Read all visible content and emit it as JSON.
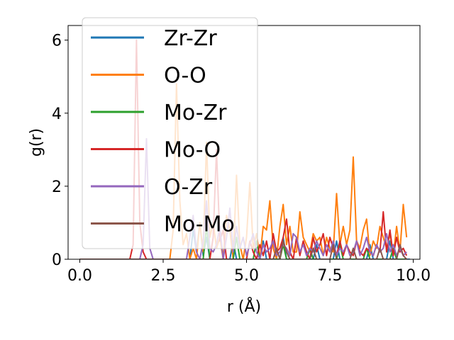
{
  "chart_data": {
    "type": "line",
    "xlabel": "r (Å)",
    "ylabel": "g(r)",
    "xlim": [
      -0.35,
      10.2
    ],
    "ylim": [
      0,
      6.4
    ],
    "xticks": [
      0.0,
      2.5,
      5.0,
      7.5,
      10.0
    ],
    "xtick_labels": [
      "0.0",
      "2.5",
      "5.0",
      "7.5",
      "10.0"
    ],
    "yticks": [
      0,
      2,
      4,
      6
    ],
    "ytick_labels": [
      "0",
      "2",
      "4",
      "6"
    ],
    "grid": false,
    "legend_position": "upper-left",
    "series": [
      {
        "name": "Zr-Zr",
        "color": "#1f77b4",
        "x": [
          0.0,
          3.3,
          3.4,
          3.5,
          3.6,
          3.7,
          3.8,
          3.9,
          4.5,
          4.6,
          4.7,
          5.4,
          5.5,
          5.6,
          6.0,
          6.1,
          6.2,
          7.0,
          7.1,
          7.2,
          7.6,
          7.7,
          7.8,
          8.6,
          8.7,
          8.8,
          9.2,
          9.3,
          9.4,
          9.9
        ],
        "y": [
          0,
          0,
          0.8,
          0.2,
          1.0,
          0.1,
          0.6,
          0,
          0,
          0.5,
          0,
          0,
          0.5,
          0,
          0,
          0.6,
          0,
          0,
          0.4,
          0,
          0,
          0.5,
          0,
          0,
          0.4,
          0,
          0,
          0.5,
          0,
          0
        ]
      },
      {
        "name": "O-O",
        "color": "#ff7f0e",
        "x": [
          0.0,
          2.7,
          2.8,
          2.9,
          3.0,
          3.1,
          3.2,
          3.3,
          3.4,
          3.5,
          3.6,
          3.7,
          3.8,
          3.9,
          4.0,
          4.1,
          4.2,
          4.3,
          4.4,
          4.5,
          4.6,
          4.7,
          4.8,
          4.9,
          5.0,
          5.1,
          5.2,
          5.3,
          5.4,
          5.5,
          5.6,
          5.7,
          5.8,
          5.9,
          6.0,
          6.1,
          6.2,
          6.3,
          6.4,
          6.5,
          6.6,
          6.7,
          6.8,
          6.9,
          7.0,
          7.1,
          7.2,
          7.3,
          7.4,
          7.5,
          7.6,
          7.7,
          7.8,
          7.9,
          8.0,
          8.1,
          8.2,
          8.3,
          8.4,
          8.5,
          8.6,
          8.7,
          8.8,
          8.9,
          9.0,
          9.1,
          9.2,
          9.3,
          9.4,
          9.5,
          9.6,
          9.7,
          9.8
        ],
        "y": [
          0,
          0,
          0.8,
          4.8,
          1.6,
          0.4,
          0.7,
          0,
          0.3,
          0,
          1.0,
          0.2,
          3.2,
          0.6,
          1.0,
          0.3,
          0.6,
          0,
          1.2,
          0.8,
          0,
          2.3,
          0.4,
          0,
          0.6,
          2.1,
          0.3,
          0.7,
          0,
          0.9,
          0.8,
          1.6,
          0.3,
          0,
          0.9,
          1.5,
          0.4,
          0.9,
          0.2,
          0.2,
          1.3,
          0.6,
          0.4,
          0.2,
          0.7,
          0.5,
          0.6,
          0.1,
          0.6,
          0.3,
          0.2,
          1.8,
          0.4,
          0.9,
          0.4,
          0.8,
          2.8,
          0.5,
          0.3,
          0.8,
          1.1,
          0.1,
          0.5,
          0.3,
          0.9,
          0.6,
          0.3,
          0.7,
          0.1,
          0.9,
          0.2,
          1.5,
          0.6
        ]
      },
      {
        "name": "Mo-Zr",
        "color": "#2ca02c",
        "x": [
          0.0,
          3.7,
          3.8,
          3.9,
          4.6,
          4.7,
          4.8,
          5.2,
          5.3,
          5.4,
          6.0,
          6.1,
          6.2,
          6.8,
          6.9,
          7.0,
          7.7,
          7.8,
          7.9,
          8.5,
          8.6,
          8.7,
          9.3,
          9.4,
          9.5,
          9.8
        ],
        "y": [
          0,
          0,
          0.9,
          0,
          0,
          0.6,
          0,
          0,
          0.5,
          0,
          0,
          0.4,
          0,
          0,
          0.3,
          0,
          0,
          0.4,
          0,
          0,
          0.3,
          0,
          0,
          0.3,
          0,
          0
        ]
      },
      {
        "name": "Mo-O",
        "color": "#d62728",
        "x": [
          0.0,
          1.5,
          1.6,
          1.7,
          1.8,
          1.9,
          2.0,
          3.9,
          4.0,
          4.1,
          4.2,
          4.3,
          4.4,
          5.0,
          5.1,
          5.2,
          5.3,
          5.4,
          5.5,
          5.6,
          5.7,
          5.8,
          5.9,
          6.0,
          6.1,
          6.2,
          6.3,
          6.4,
          6.5,
          6.6,
          6.7,
          6.8,
          6.9,
          7.0,
          7.1,
          7.2,
          7.3,
          7.4,
          7.5,
          7.6,
          7.7,
          7.8,
          7.9,
          8.0,
          8.1,
          8.2,
          8.3,
          8.4,
          8.5,
          8.6,
          8.7,
          8.8,
          8.9,
          9.0,
          9.1,
          9.2,
          9.3,
          9.4,
          9.5,
          9.6,
          9.7,
          9.8
        ],
        "y": [
          0,
          0,
          0.4,
          6.0,
          1.0,
          0.2,
          0,
          0,
          0.6,
          3.0,
          0.5,
          0.8,
          0,
          0,
          0.5,
          0.2,
          0,
          0.4,
          0.1,
          0.5,
          0,
          0.7,
          0.2,
          0.3,
          0.6,
          1.1,
          0.2,
          0,
          0.6,
          0.1,
          0.5,
          0.2,
          0,
          0.6,
          0.2,
          0.4,
          0.7,
          0.1,
          0.6,
          0.3,
          0.1,
          0.5,
          0.1,
          0.4,
          0.2,
          0.1,
          0.5,
          0.2,
          0.1,
          0.3,
          0.2,
          0.1,
          0.4,
          0.2,
          1.3,
          0.2,
          0.8,
          0.1,
          0.6,
          0.2,
          0.3,
          0.1
        ]
      },
      {
        "name": "O-Zr",
        "color": "#9467bd",
        "x": [
          0.0,
          1.8,
          1.9,
          2.0,
          2.1,
          2.2,
          3.2,
          3.3,
          3.4,
          3.5,
          3.6,
          3.7,
          3.8,
          3.9,
          4.0,
          4.1,
          4.2,
          4.3,
          4.4,
          4.5,
          4.6,
          4.7,
          4.8,
          4.9,
          5.0,
          5.1,
          5.2,
          5.3,
          5.4,
          5.5,
          5.6,
          5.7,
          5.8,
          5.9,
          6.0,
          6.1,
          6.2,
          6.3,
          6.4,
          6.5,
          6.6,
          6.7,
          6.8,
          6.9,
          7.0,
          7.1,
          7.2,
          7.3,
          7.4,
          7.5,
          7.6,
          7.7,
          7.8,
          7.9,
          8.0,
          8.1,
          8.2,
          8.3,
          8.4,
          8.5,
          8.6,
          8.7,
          8.8,
          8.9,
          9.0,
          9.1,
          9.2,
          9.3,
          9.4,
          9.5,
          9.6,
          9.7,
          9.8
        ],
        "y": [
          0,
          0,
          0.4,
          3.3,
          0.3,
          0,
          0,
          0.6,
          1.2,
          0.2,
          0,
          0.5,
          1.6,
          0.3,
          0.2,
          0.4,
          0.9,
          0,
          0.6,
          1.4,
          0.2,
          0.9,
          0.3,
          0.6,
          0.1,
          0.4,
          0.7,
          0.2,
          0,
          0.4,
          0.2,
          0.3,
          0.5,
          0.1,
          0.2,
          0.4,
          0.3,
          0.1,
          0.7,
          0.6,
          0.2,
          0.4,
          0.1,
          0.3,
          0.2,
          0.5,
          0.3,
          0.1,
          0.4,
          0.2,
          0.5,
          0.1,
          0.3,
          0.2,
          0.4,
          0.1,
          0.2,
          0.5,
          0.1,
          0.3,
          0.6,
          0.2,
          0.1,
          0.4,
          0.2,
          0.3,
          0.7,
          0.2,
          0.4,
          0.1,
          0.3,
          0.1,
          0.2
        ]
      },
      {
        "name": "Mo-Mo",
        "color": "#8c564b",
        "x": [
          0.0,
          5.8,
          5.9,
          6.0,
          6.1,
          6.2,
          6.3,
          6.9,
          7.0,
          7.1,
          7.5,
          7.6,
          7.7,
          8.1,
          8.2,
          8.3,
          8.9,
          9.0,
          9.1,
          9.5,
          9.6,
          9.7,
          9.8
        ],
        "y": [
          0,
          0,
          0.3,
          0,
          0.5,
          0.2,
          0,
          0,
          0.3,
          0,
          0,
          0.4,
          0,
          0,
          0.3,
          0,
          0,
          0.3,
          0,
          0,
          0.4,
          0.1,
          0
        ]
      }
    ]
  }
}
